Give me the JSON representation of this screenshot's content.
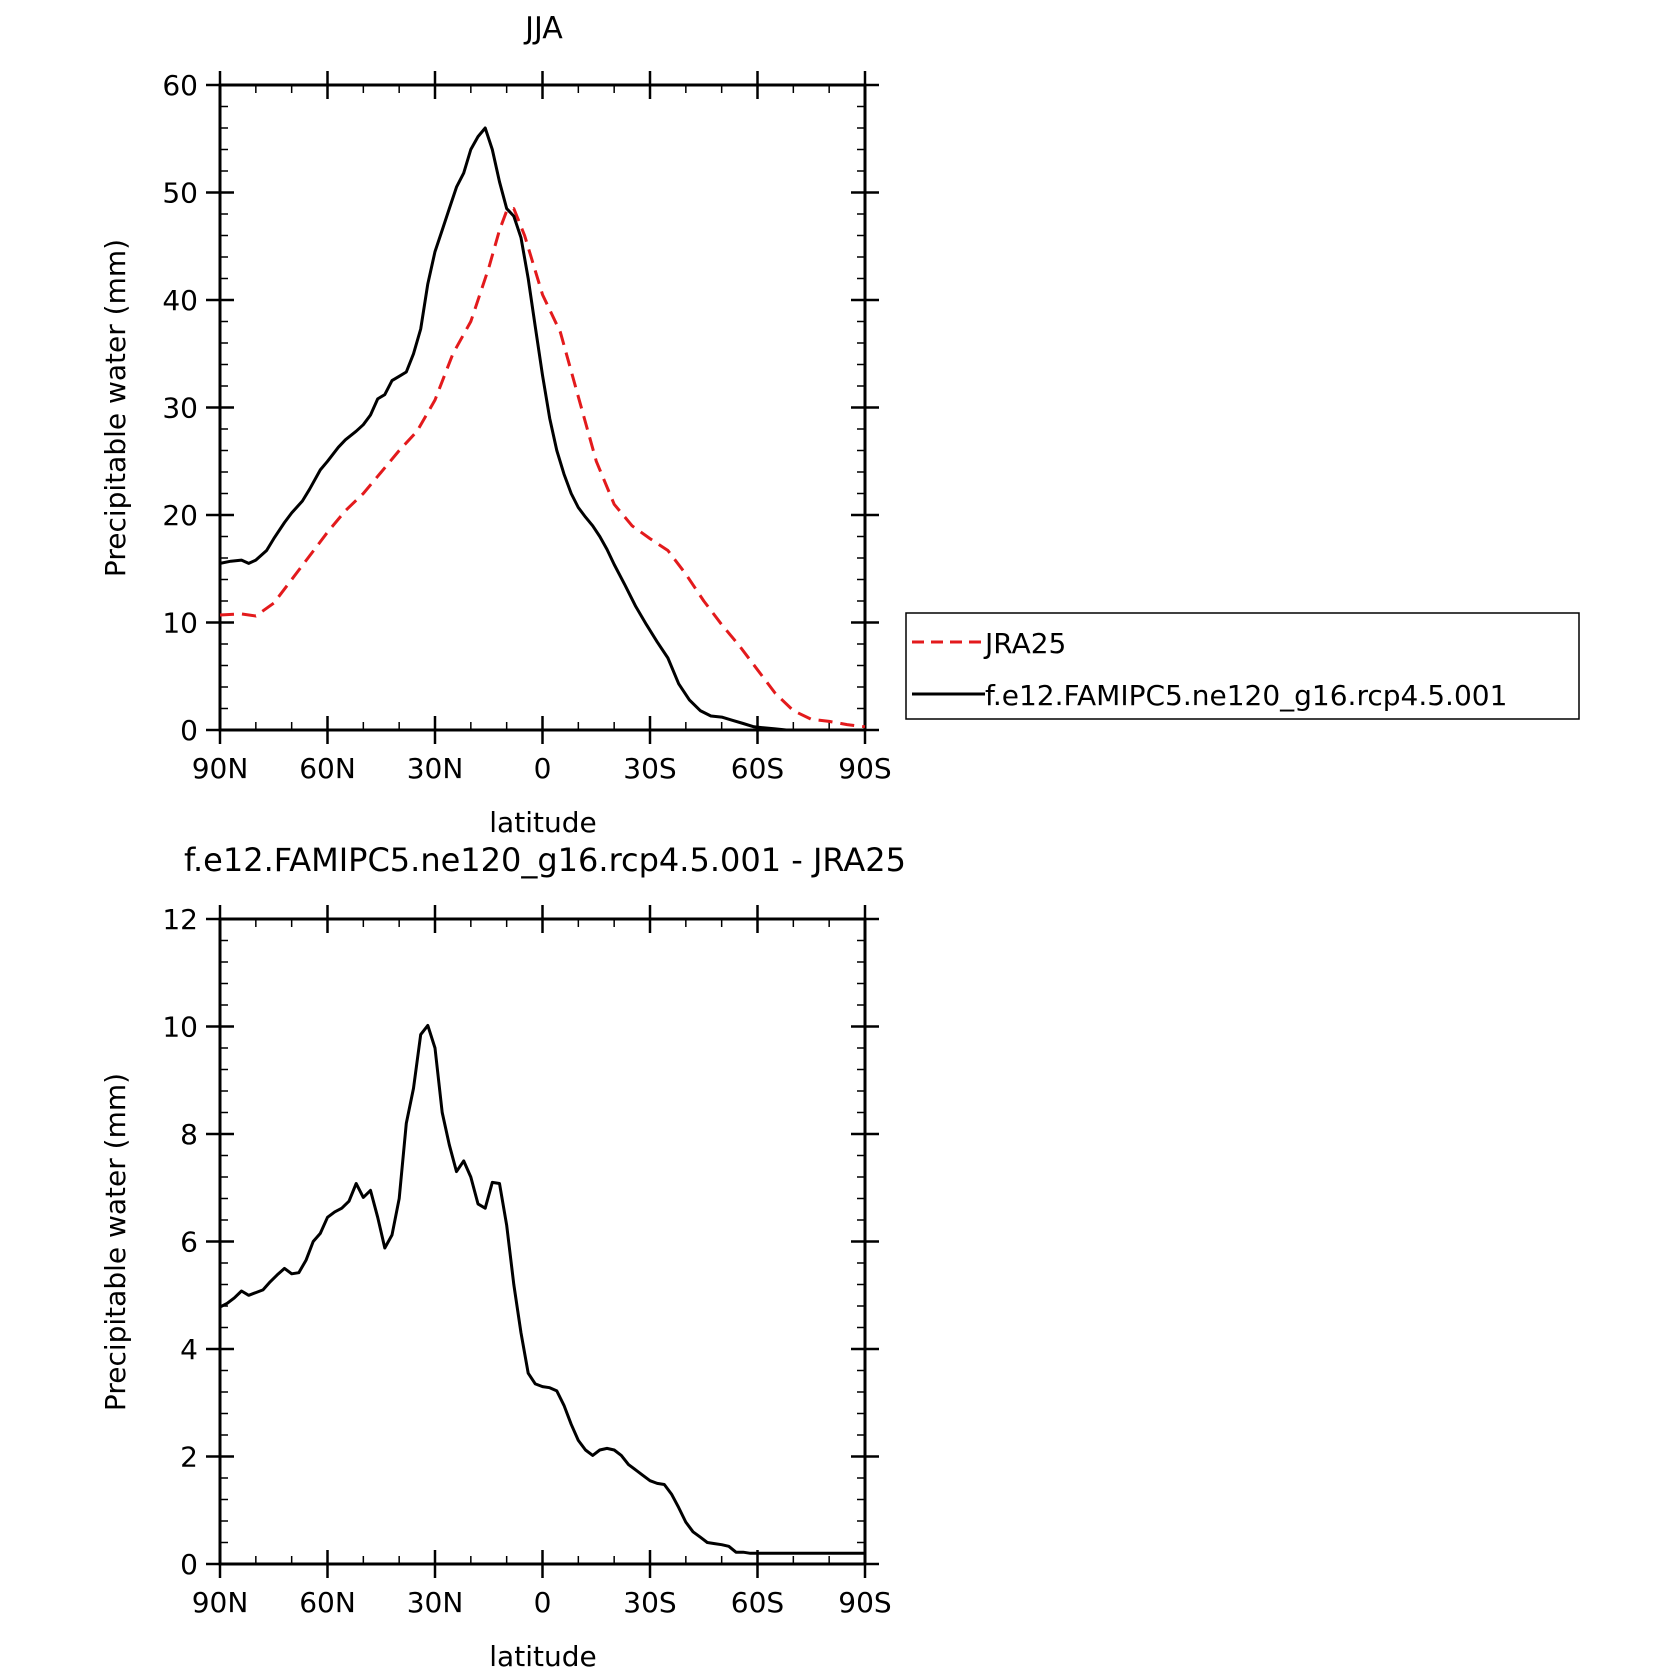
{
  "colors": {
    "model": "#000000",
    "jra25": "#e31a1c",
    "axis": "#000000"
  },
  "chart_data": [
    {
      "type": "line",
      "title": "JJA",
      "xlabel": "latitude",
      "ylabel": "Precipitable water (mm)",
      "xlim": [
        90,
        -90
      ],
      "ylim": [
        0,
        60
      ],
      "xticks": [
        90,
        60,
        30,
        0,
        -30,
        -60,
        -90
      ],
      "xtick_labels": [
        "90N",
        "60N",
        "30N",
        "0",
        "30S",
        "60S",
        "90S"
      ],
      "yticks": [
        0,
        10,
        20,
        30,
        40,
        50,
        60
      ],
      "ytick_labels": [
        "0",
        "10",
        "20",
        "30",
        "40",
        "50",
        "60"
      ],
      "legend": {
        "placement": "right",
        "entries": [
          "JRA25",
          "f.e12.FAMIPC5.ne120_g16.rcp4.5.001"
        ]
      },
      "series": [
        {
          "name": "JRA25",
          "style": "dashed",
          "x": [
            90,
            84,
            80,
            75,
            70,
            65,
            60,
            55,
            50,
            45,
            40,
            35,
            30,
            25,
            20,
            15,
            12,
            10,
            8,
            5,
            0,
            -5,
            -10,
            -15,
            -20,
            -25,
            -30,
            -35,
            -40,
            -45,
            -50,
            -55,
            -60,
            -65,
            -70,
            -75,
            -80,
            -85,
            -90
          ],
          "values": [
            10.7,
            10.8,
            10.6,
            11.8,
            14.0,
            16.2,
            18.4,
            20.4,
            22.0,
            24.0,
            26.0,
            27.8,
            30.7,
            35.0,
            38.0,
            43.0,
            46.5,
            48.3,
            48.5,
            46.0,
            40.5,
            37.0,
            31.0,
            25.0,
            21.0,
            19.0,
            17.8,
            16.7,
            14.5,
            12.0,
            9.8,
            7.8,
            5.6,
            3.4,
            1.8,
            1.0,
            0.8,
            0.5,
            0.3
          ]
        },
        {
          "name": "f.e12.FAMIPC5.ne120_g16.rcp4.5.001",
          "style": "solid",
          "x": [
            90,
            87,
            84,
            82,
            80,
            77,
            75,
            72,
            70,
            67,
            65,
            62,
            60,
            57,
            55,
            52,
            50,
            48,
            46,
            44,
            42,
            40,
            38,
            36,
            34,
            32,
            30,
            28,
            26,
            24,
            22,
            20,
            18,
            16,
            14,
            12,
            10,
            8,
            6,
            4,
            2,
            0,
            -2,
            -4,
            -6,
            -8,
            -10,
            -12,
            -14,
            -16,
            -18,
            -20,
            -23,
            -26,
            -29,
            -32,
            -35,
            -38,
            -41,
            -44,
            -47,
            -50,
            -53,
            -56,
            -59,
            -62,
            -65,
            -68,
            -71,
            -74,
            -77,
            -80,
            -83,
            -86,
            -88,
            -90
          ],
          "values": [
            15.5,
            15.7,
            15.8,
            15.5,
            15.8,
            16.7,
            17.8,
            19.3,
            20.2,
            21.3,
            22.4,
            24.2,
            25.0,
            26.3,
            27.0,
            27.8,
            28.4,
            29.3,
            30.8,
            31.2,
            32.5,
            32.9,
            33.3,
            35.0,
            37.3,
            41.5,
            44.5,
            46.5,
            48.5,
            50.5,
            51.8,
            54.0,
            55.2,
            56.0,
            54.0,
            51.0,
            48.5,
            47.8,
            45.8,
            42.0,
            37.5,
            33.0,
            29.0,
            26.0,
            23.8,
            22.0,
            20.7,
            19.8,
            19.0,
            18.0,
            16.8,
            15.4,
            13.5,
            11.5,
            9.8,
            8.2,
            6.7,
            4.3,
            2.8,
            1.8,
            1.3,
            1.2,
            0.9,
            0.6,
            0.3,
            0.2,
            0.1,
            0.0,
            0.0,
            0.0,
            0.0,
            0.0,
            0.0,
            0.0,
            0.0,
            0.0
          ]
        }
      ]
    },
    {
      "type": "line",
      "title": "f.e12.FAMIPC5.ne120_g16.rcp4.5.001 - JRA25",
      "xlabel": "latitude",
      "ylabel": "Precipitable water (mm)",
      "xlim": [
        90,
        -90
      ],
      "ylim": [
        0,
        12
      ],
      "xticks": [
        90,
        60,
        30,
        0,
        -30,
        -60,
        -90
      ],
      "xtick_labels": [
        "90N",
        "60N",
        "30N",
        "0",
        "30S",
        "60S",
        "90S"
      ],
      "yticks": [
        0,
        2,
        4,
        6,
        8,
        10,
        12
      ],
      "ytick_labels": [
        "0",
        "2",
        "4",
        "6",
        "8",
        "10",
        "12"
      ],
      "series": [
        {
          "name": "f.e12.FAMIPC5.ne120_g16.rcp4.5.001 - JRA25",
          "style": "solid",
          "x": [
            90,
            88,
            86,
            84,
            82,
            80,
            78,
            76,
            74,
            72,
            70,
            68,
            66,
            64,
            62,
            60,
            58,
            56,
            54,
            52,
            50,
            48,
            46,
            44,
            42,
            40,
            38,
            36,
            34,
            32,
            30,
            28,
            26,
            24,
            22,
            20,
            18,
            16,
            14,
            12,
            10,
            8,
            6,
            4,
            2,
            0,
            -2,
            -4,
            -6,
            -8,
            -10,
            -12,
            -14,
            -16,
            -18,
            -20,
            -22,
            -24,
            -26,
            -28,
            -30,
            -32,
            -34,
            -36,
            -38,
            -40,
            -42,
            -44,
            -46,
            -48,
            -50,
            -52,
            -54,
            -56,
            -58,
            -60,
            -62,
            -64,
            -66,
            -68,
            -70,
            -72,
            -74,
            -76,
            -78,
            -80,
            -82,
            -84,
            -86,
            -88,
            -90
          ],
          "values": [
            4.78,
            4.85,
            4.95,
            5.08,
            5.0,
            5.05,
            5.1,
            5.25,
            5.38,
            5.5,
            5.4,
            5.42,
            5.65,
            6.0,
            6.15,
            6.45,
            6.55,
            6.62,
            6.75,
            7.08,
            6.82,
            6.95,
            6.45,
            5.88,
            6.12,
            6.8,
            8.2,
            8.85,
            9.85,
            10.02,
            9.6,
            8.4,
            7.8,
            7.3,
            7.5,
            7.2,
            6.7,
            6.62,
            7.1,
            7.08,
            6.3,
            5.2,
            4.3,
            3.55,
            3.35,
            3.3,
            3.28,
            3.22,
            2.95,
            2.6,
            2.3,
            2.12,
            2.02,
            2.12,
            2.15,
            2.12,
            2.02,
            1.85,
            1.75,
            1.65,
            1.55,
            1.5,
            1.48,
            1.3,
            1.05,
            0.78,
            0.6,
            0.5,
            0.4,
            0.38,
            0.36,
            0.33,
            0.22,
            0.22,
            0.2,
            0.2,
            0.2,
            0.2,
            0.2,
            0.2,
            0.2,
            0.2,
            0.2,
            0.2,
            0.2,
            0.2,
            0.2,
            0.2,
            0.2,
            0.2,
            0.2
          ]
        }
      ]
    }
  ]
}
